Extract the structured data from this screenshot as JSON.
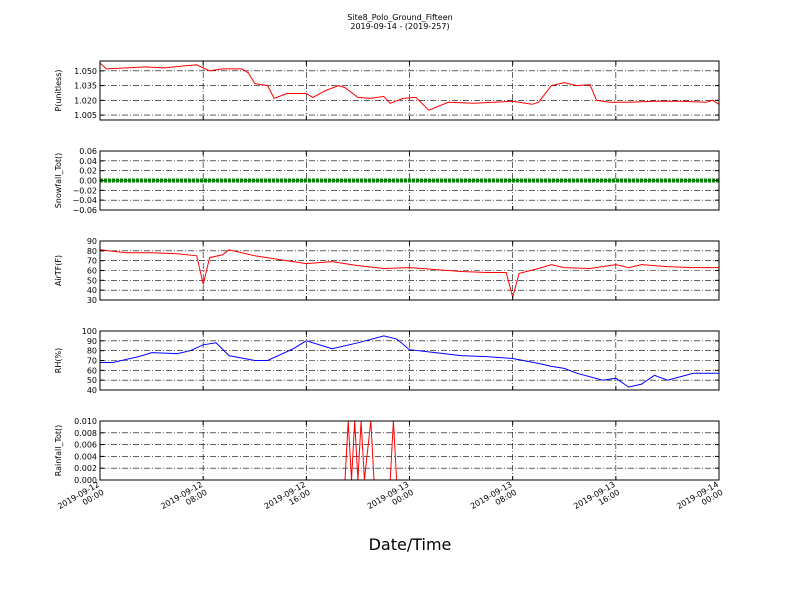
{
  "chart_data": {
    "type": "line",
    "title": "Site8_Polo_Ground_Fifteen",
    "subtitle": "2019-09-14 - (2019-257)",
    "xlabel": "Date/Time",
    "x_range": [
      "2019-09-12 00:00",
      "2019-09-14 00:00"
    ],
    "x_ticks": [
      {
        "line1": "2019-09-12",
        "line2": "00:00",
        "t": "2019-09-12 00:00"
      },
      {
        "line1": "2019-09-12",
        "line2": "08:00",
        "t": "2019-09-12 08:00"
      },
      {
        "line1": "2019-09-12",
        "line2": "16:00",
        "t": "2019-09-12 16:00"
      },
      {
        "line1": "2019-09-13",
        "line2": "00:00",
        "t": "2019-09-13 00:00"
      },
      {
        "line1": "2019-09-13",
        "line2": "08:00",
        "t": "2019-09-13 08:00"
      },
      {
        "line1": "2019-09-13",
        "line2": "16:00",
        "t": "2019-09-13 16:00"
      },
      {
        "line1": "2019-09-14",
        "line2": "00:00",
        "t": "2019-09-14 00:00"
      }
    ],
    "grid": true,
    "panels": [
      {
        "ylabel": "P(unitless)",
        "color": "#ff0000",
        "ylim": [
          1.0,
          1.06
        ],
        "yticks": [
          "1.005",
          "1.020",
          "1.035",
          "1.050"
        ],
        "ytick_values": [
          1.005,
          1.02,
          1.035,
          1.05
        ],
        "x": [
          "2019-09-12 00:00",
          "2019-09-12 00:30",
          "2019-09-12 02:00",
          "2019-09-12 03:30",
          "2019-09-12 05:00",
          "2019-09-12 06:30",
          "2019-09-12 07:30",
          "2019-09-12 08:30",
          "2019-09-12 09:30",
          "2019-09-12 11:00",
          "2019-09-12 11:30",
          "2019-09-12 12:00",
          "2019-09-12 13:00",
          "2019-09-12 13:30",
          "2019-09-12 14:30",
          "2019-09-12 16:00",
          "2019-09-12 16:30",
          "2019-09-12 17:30",
          "2019-09-12 18:30",
          "2019-09-12 19:00",
          "2019-09-12 20:00",
          "2019-09-12 21:00",
          "2019-09-12 22:00",
          "2019-09-12 22:30",
          "2019-09-12 23:30",
          "2019-09-13 00:30",
          "2019-09-13 01:30",
          "2019-09-13 03:00",
          "2019-09-13 05:00",
          "2019-09-13 06:30",
          "2019-09-13 08:00",
          "2019-09-13 09:30",
          "2019-09-13 10:00",
          "2019-09-13 11:00",
          "2019-09-13 12:00",
          "2019-09-13 13:00",
          "2019-09-13 14:00",
          "2019-09-13 14:30",
          "2019-09-13 15:30",
          "2019-09-13 17:00",
          "2019-09-13 19:00",
          "2019-09-13 21:00",
          "2019-09-13 23:00",
          "2019-09-13 23:30",
          "2019-09-14 00:00"
        ],
        "values": [
          1.058,
          1.052,
          1.053,
          1.054,
          1.053,
          1.055,
          1.056,
          1.05,
          1.052,
          1.052,
          1.048,
          1.037,
          1.035,
          1.022,
          1.027,
          1.027,
          1.023,
          1.03,
          1.035,
          1.033,
          1.023,
          1.022,
          1.024,
          1.017,
          1.022,
          1.023,
          1.01,
          1.018,
          1.017,
          1.018,
          1.019,
          1.016,
          1.018,
          1.035,
          1.038,
          1.035,
          1.036,
          1.02,
          1.018,
          1.018,
          1.019,
          1.019,
          1.018,
          1.02,
          1.016
        ]
      },
      {
        "ylabel": "Snowfall_Tot()",
        "color": "#008000",
        "ylim": [
          -0.06,
          0.06
        ],
        "yticks": [
          "−0.06",
          "−0.04",
          "−0.02",
          "0.00",
          "0.02",
          "0.04",
          "0.06"
        ],
        "ytick_values": [
          -0.06,
          -0.04,
          -0.02,
          0.0,
          0.02,
          0.04,
          0.06
        ],
        "x": [
          "2019-09-12 00:00",
          "2019-09-14 00:00"
        ],
        "values": [
          0.0,
          0.0
        ]
      },
      {
        "ylabel": "AirTF(F)",
        "color": "#ff0000",
        "ylim": [
          30,
          90
        ],
        "yticks": [
          "30",
          "40",
          "50",
          "60",
          "70",
          "80",
          "90"
        ],
        "ytick_values": [
          30,
          40,
          50,
          60,
          70,
          80,
          90
        ],
        "x": [
          "2019-09-12 00:00",
          "2019-09-12 02:00",
          "2019-09-12 04:00",
          "2019-09-12 06:00",
          "2019-09-12 07:30",
          "2019-09-12 08:00",
          "2019-09-12 08:30",
          "2019-09-12 09:30",
          "2019-09-12 10:00",
          "2019-09-12 12:00",
          "2019-09-12 14:00",
          "2019-09-12 16:00",
          "2019-09-12 18:00",
          "2019-09-12 20:00",
          "2019-09-12 22:00",
          "2019-09-13 00:00",
          "2019-09-13 02:00",
          "2019-09-13 04:00",
          "2019-09-13 06:00",
          "2019-09-13 07:30",
          "2019-09-13 08:00",
          "2019-09-13 08:30",
          "2019-09-13 10:00",
          "2019-09-13 11:00",
          "2019-09-13 12:00",
          "2019-09-13 14:00",
          "2019-09-13 16:00",
          "2019-09-13 17:00",
          "2019-09-13 18:00",
          "2019-09-13 20:00",
          "2019-09-13 22:00",
          "2019-09-14 00:00"
        ],
        "values": [
          81,
          78,
          78,
          77,
          75,
          46,
          73,
          76,
          81,
          75,
          71,
          67,
          69,
          65,
          62,
          63,
          61,
          59,
          58,
          58,
          33,
          57,
          62,
          66,
          63,
          62,
          66,
          63,
          66,
          64,
          63,
          63
        ]
      },
      {
        "ylabel": "RH(%)",
        "color": "#0000ff",
        "ylim": [
          40,
          100
        ],
        "yticks": [
          "40",
          "50",
          "60",
          "70",
          "80",
          "90",
          "100"
        ],
        "ytick_values": [
          40,
          50,
          60,
          70,
          80,
          90,
          100
        ],
        "x": [
          "2019-09-12 00:00",
          "2019-09-12 01:00",
          "2019-09-12 03:00",
          "2019-09-12 04:00",
          "2019-09-12 06:00",
          "2019-09-12 07:00",
          "2019-09-12 08:00",
          "2019-09-12 09:00",
          "2019-09-12 10:00",
          "2019-09-12 12:00",
          "2019-09-12 13:00",
          "2019-09-12 15:00",
          "2019-09-12 16:00",
          "2019-09-12 18:00",
          "2019-09-12 20:00",
          "2019-09-12 22:00",
          "2019-09-12 23:00",
          "2019-09-13 00:00",
          "2019-09-13 02:00",
          "2019-09-13 04:00",
          "2019-09-13 06:00",
          "2019-09-13 08:00",
          "2019-09-13 10:00",
          "2019-09-13 11:00",
          "2019-09-13 12:00",
          "2019-09-13 13:00",
          "2019-09-13 15:00",
          "2019-09-13 16:00",
          "2019-09-13 17:00",
          "2019-09-13 18:00",
          "2019-09-13 19:00",
          "2019-09-13 20:00",
          "2019-09-13 22:00",
          "2019-09-14 00:00"
        ],
        "values": [
          68,
          68,
          74,
          78,
          77,
          80,
          86,
          88,
          75,
          70,
          70,
          82,
          90,
          82,
          88,
          95,
          92,
          81,
          78,
          75,
          74,
          72,
          67,
          64,
          62,
          57,
          50,
          52,
          43,
          46,
          55,
          50,
          57,
          57
        ]
      },
      {
        "ylabel": "Rainfall_Tot()",
        "color": "#ff0000",
        "ylim": [
          0.0,
          0.01
        ],
        "yticks": [
          "0.000",
          "0.002",
          "0.004",
          "0.006",
          "0.008",
          "0.010"
        ],
        "ytick_values": [
          0.0,
          0.002,
          0.004,
          0.006,
          0.008,
          0.01
        ],
        "x": [
          "2019-09-12 00:00",
          "2019-09-12 19:00",
          "2019-09-12 19:15",
          "2019-09-12 19:30",
          "2019-09-12 19:45",
          "2019-09-12 20:00",
          "2019-09-12 20:15",
          "2019-09-12 20:30",
          "2019-09-12 21:00",
          "2019-09-12 21:15",
          "2019-09-12 21:30",
          "2019-09-12 22:30",
          "2019-09-12 22:45",
          "2019-09-12 23:00",
          "2019-09-14 00:00"
        ],
        "values": [
          0,
          0,
          0.01,
          0,
          0.01,
          0,
          0.01,
          0,
          0.01,
          0,
          0,
          0,
          0.01,
          0,
          0
        ]
      }
    ]
  }
}
